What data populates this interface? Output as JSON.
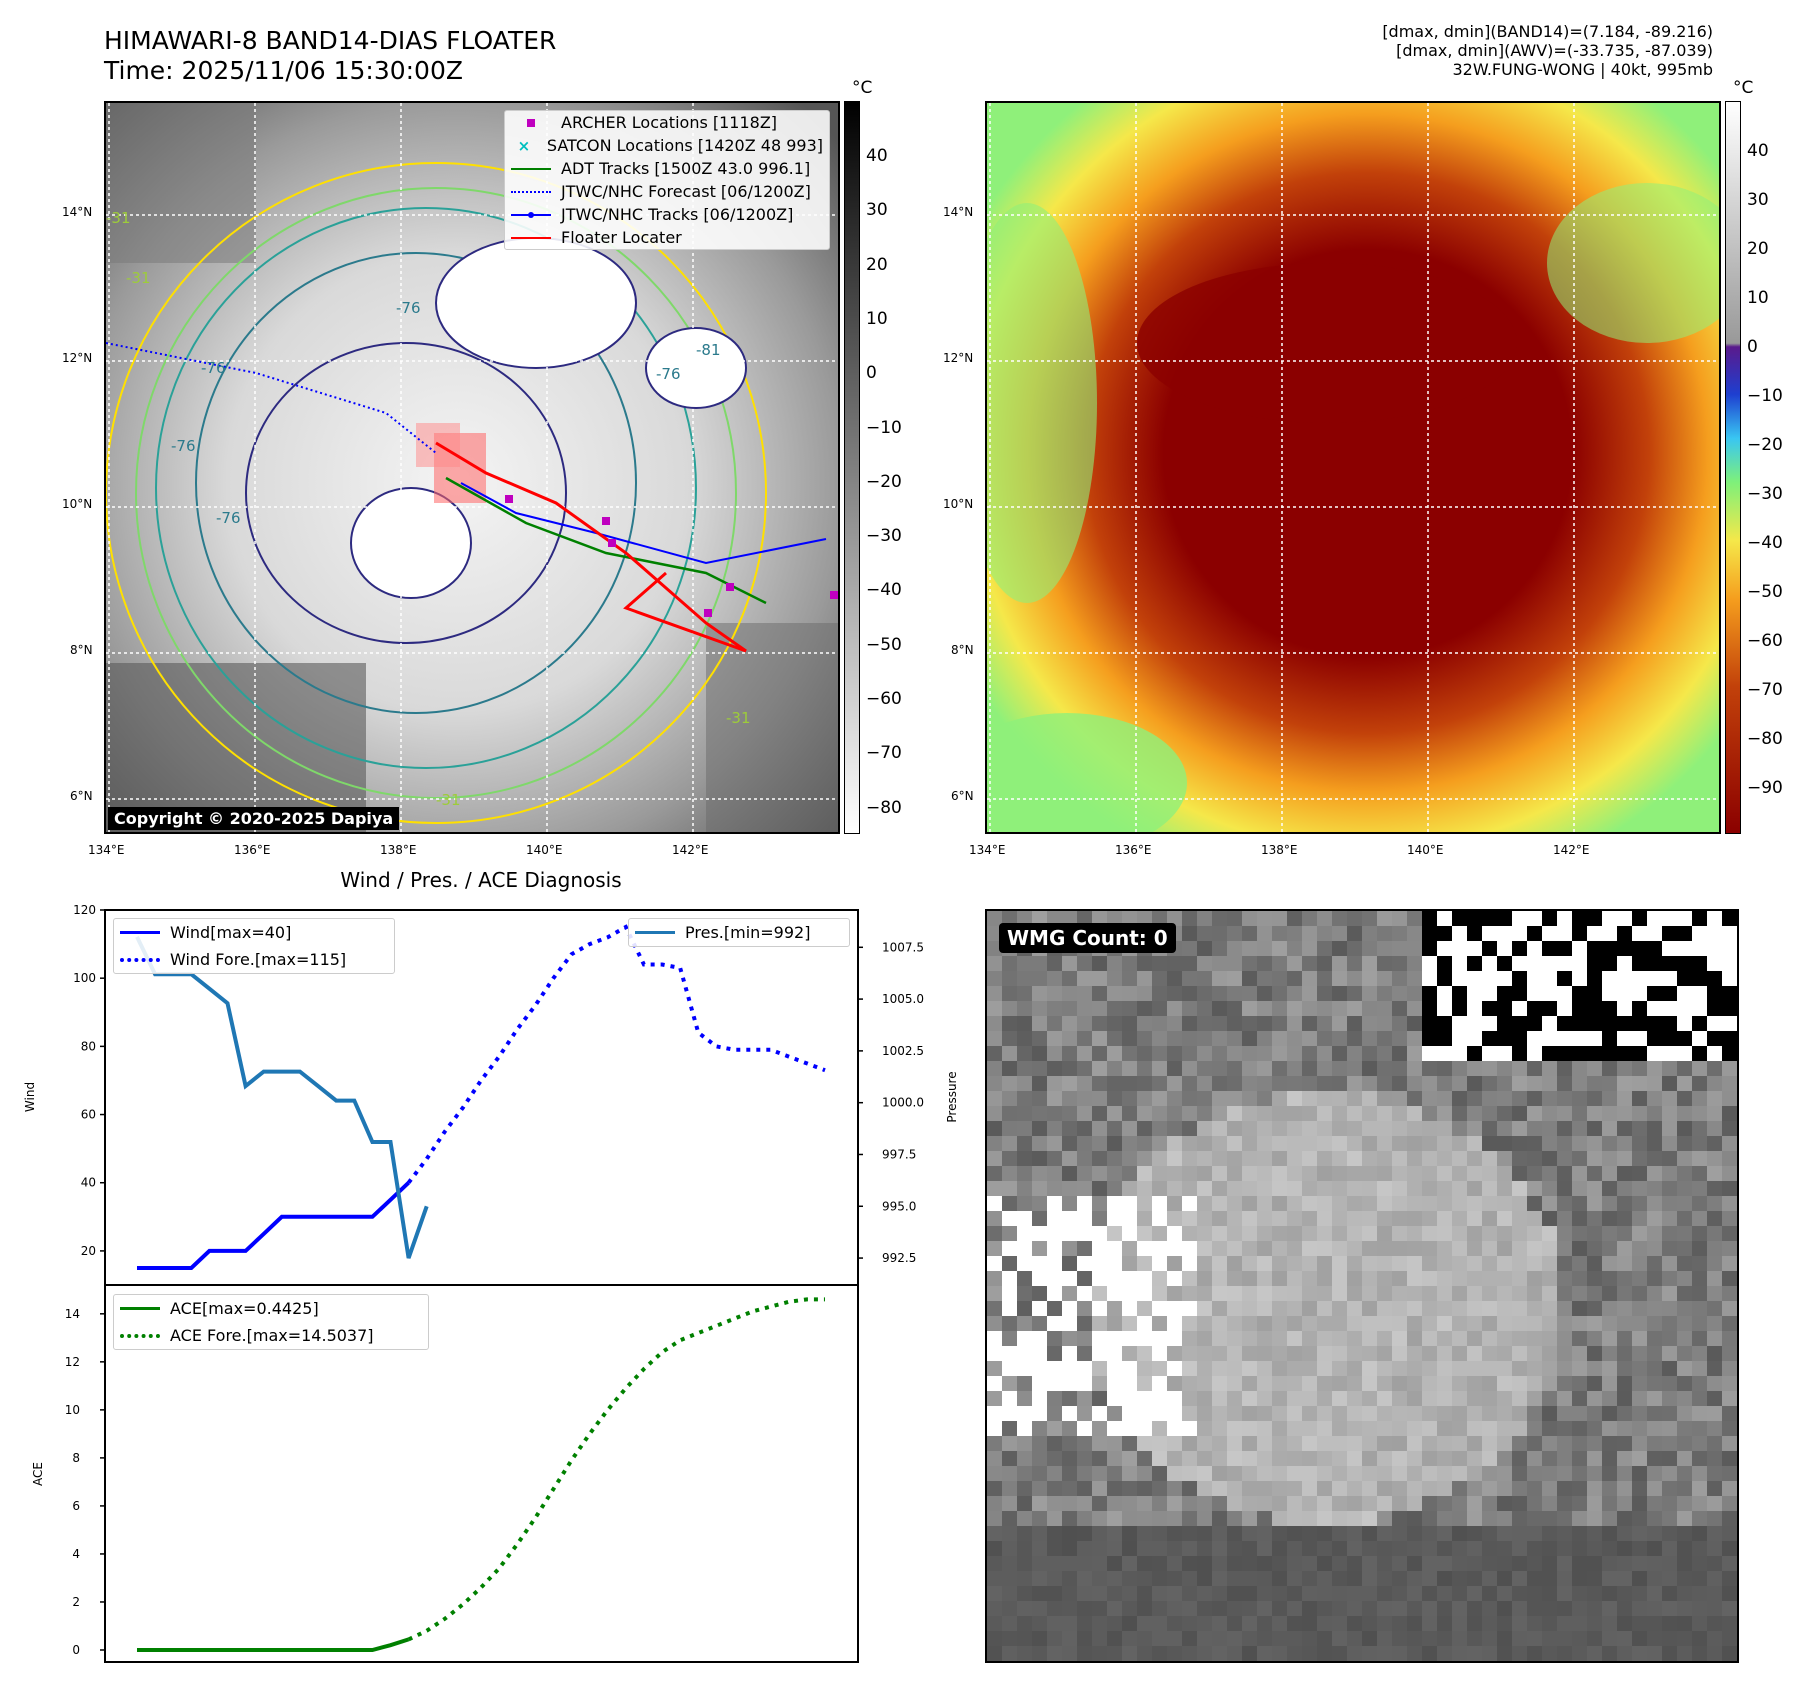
{
  "header": {
    "title_line1": "HIMAWARI-8 BAND14-DIAS FLOATER",
    "title_line2": "Time: 2025/11/06 15:30:00Z",
    "info_line1": "[dmax, dmin](BAND14)=(7.184, -89.216)",
    "info_line2": "[dmax, dmin](AWV)=(-33.735, -87.039)",
    "info_line3": "32W.FUNG-WONG | 40kt, 995mb"
  },
  "map": {
    "lat_labels": [
      "14°N",
      "12°N",
      "10°N",
      "8°N",
      "6°N"
    ],
    "lon_labels": [
      "134°E",
      "136°E",
      "138°E",
      "140°E",
      "142°E"
    ],
    "copyright": "Copyright © 2020-2025 Dapiya",
    "contour_labels": [
      "-76",
      "-76",
      "-76",
      "-76",
      "-81",
      "-76",
      "-31",
      "-31",
      "-31",
      "-31"
    ],
    "legend": [
      {
        "label": "ARCHER Locations [1118Z]",
        "color": "#bf00bf"
      },
      {
        "label": "SATCON Locations [1420Z 48 993]",
        "color": "#00bfbf"
      },
      {
        "label": "ADT Tracks [1500Z 43.0 996.1]",
        "color": "#008000"
      },
      {
        "label": "JTWC/NHC Forecast [06/1200Z]",
        "color": "#0000ff"
      },
      {
        "label": "JTWC/NHC Tracks [06/1200Z]",
        "color": "#0000ff"
      },
      {
        "label": "Floater Locater",
        "color": "#ff0000"
      }
    ]
  },
  "colorbar_left": {
    "unit": "°C",
    "ticks": [
      "40",
      "30",
      "20",
      "10",
      "0",
      "−10",
      "−20",
      "−30",
      "−40",
      "−50",
      "−60",
      "−70",
      "−80"
    ]
  },
  "colorbar_right": {
    "unit": "°C",
    "ticks": [
      "40",
      "30",
      "20",
      "10",
      "0",
      "−10",
      "−20",
      "−30",
      "−40",
      "−50",
      "−60",
      "−70",
      "−80",
      "−90"
    ]
  },
  "wmg": {
    "label": "WMG Count: 0"
  },
  "chart_data": [
    {
      "type": "line",
      "title": "Wind / Pres. / ACE Diagnosis",
      "ylabel": "Wind",
      "ylabel_right": "Pressure",
      "ylim": [
        10,
        120
      ],
      "yticks": [
        "120",
        "100",
        "80",
        "60",
        "40",
        "20"
      ],
      "ylim_right": [
        991.2,
        1009.3
      ],
      "yticks_right": [
        "1007.5",
        "1005.0",
        "1002.5",
        "1000.0",
        "997.5",
        "995.0",
        "992.5"
      ],
      "x_count": 36,
      "series": [
        {
          "name": "Wind[max=40]",
          "color": "#0000ff",
          "style": "solid",
          "axis": "left",
          "x": [
            0,
            1,
            2,
            3,
            4,
            5,
            6,
            7,
            8,
            9,
            10,
            11,
            12,
            13,
            14,
            15
          ],
          "values": [
            15,
            15,
            15,
            15,
            20,
            20,
            20,
            25,
            30,
            30,
            30,
            30,
            30,
            30,
            35,
            40
          ]
        },
        {
          "name": "Wind Fore.[max=115]",
          "color": "#0000ff",
          "style": "dotted",
          "axis": "left",
          "x": [
            15,
            16,
            17,
            18,
            19,
            20,
            21,
            22,
            23,
            24,
            25,
            26,
            27,
            28,
            29,
            30,
            31,
            32,
            33,
            34,
            35,
            36,
            37,
            38
          ],
          "values": [
            40,
            47,
            55,
            62,
            70,
            77,
            85,
            92,
            100,
            107,
            110,
            112,
            115,
            104,
            104,
            103,
            84,
            80,
            79,
            79,
            79,
            77,
            75,
            73
          ]
        },
        {
          "name": "Pres.[min=992]",
          "color": "#1f77b4",
          "style": "solid",
          "axis": "right",
          "x": [
            0,
            1,
            2,
            3,
            4,
            5,
            6,
            7,
            8,
            9,
            10,
            11,
            12,
            13,
            14,
            15,
            16
          ],
          "values": [
            1008,
            1006.2,
            1006.2,
            1006.2,
            1005.5,
            1004.8,
            1000.8,
            1001.5,
            1001.5,
            1001.5,
            1000.8,
            1000.1,
            1000.1,
            998.1,
            998.1,
            992.5,
            995.0
          ]
        }
      ]
    },
    {
      "type": "line",
      "ylabel": "ACE",
      "ylim": [
        -0.5,
        15.2
      ],
      "yticks": [
        "14",
        "12",
        "10",
        "8",
        "6",
        "4",
        "2",
        "0"
      ],
      "series": [
        {
          "name": "ACE[max=0.4425]",
          "color": "#008000",
          "style": "solid",
          "x": [
            0,
            13,
            14,
            15
          ],
          "values": [
            0,
            0,
            0.2,
            0.44
          ]
        },
        {
          "name": "ACE Fore.[max=14.5037]",
          "color": "#008000",
          "style": "dotted",
          "x": [
            15,
            16,
            17,
            18,
            19,
            20,
            21,
            22,
            23,
            24,
            25,
            26,
            27,
            28,
            29,
            30,
            31,
            32,
            33,
            34,
            35,
            36,
            37,
            38
          ],
          "values": [
            0.44,
            0.8,
            1.3,
            1.9,
            2.6,
            3.4,
            4.4,
            5.5,
            6.7,
            7.9,
            9.0,
            10.0,
            10.9,
            11.7,
            12.4,
            12.9,
            13.2,
            13.5,
            13.8,
            14.1,
            14.3,
            14.5,
            14.6,
            14.6
          ]
        }
      ]
    }
  ]
}
